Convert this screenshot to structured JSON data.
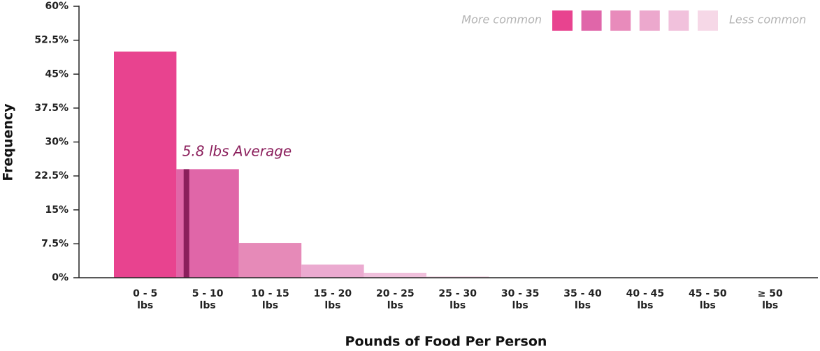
{
  "chart_data": {
    "type": "bar",
    "x_label": "Pounds of Food Per Person",
    "y_label": "Frequency",
    "categories": [
      "0 - 5 lbs",
      "5 - 10 lbs",
      "10 - 15 lbs",
      "15 - 20 lbs",
      "20 - 25 lbs",
      "25 - 30 lbs",
      "30 - 35 lbs",
      "35 - 40 lbs",
      "40 - 45 lbs",
      "45 - 50 lbs",
      "≥ 50 lbs"
    ],
    "values": [
      50,
      24,
      7.7,
      2.9,
      1.1,
      0.3,
      0,
      0,
      0,
      0,
      0
    ],
    "colors": [
      "#e8438f",
      "#e066a8",
      "#e68ab8",
      "#ebaad0",
      "#f0c0dc",
      "#f6d8e7",
      "#f6d8e7",
      "#f6d8e7",
      "#f6d8e7",
      "#f6d8e7",
      "#f6d8e7"
    ],
    "xlim": [
      0,
      55
    ],
    "ylim": [
      0,
      60
    ],
    "yticks": [
      {
        "value": 0,
        "label": "0%"
      },
      {
        "value": 7.5,
        "label": "7.5%"
      },
      {
        "value": 15,
        "label": "15%"
      },
      {
        "value": 22.5,
        "label": "22.5%"
      },
      {
        "value": 30,
        "label": "30%"
      },
      {
        "value": 37.5,
        "label": "37.5%"
      },
      {
        "value": 45,
        "label": "45%"
      },
      {
        "value": 52.5,
        "label": "52.5%"
      },
      {
        "value": 60,
        "label": "60%"
      }
    ],
    "average": {
      "value": 5.8,
      "label": "5.8 lbs Average",
      "color": "#8b1f5c"
    },
    "legend": {
      "left_label": "More common",
      "right_label": "Less common",
      "colors": [
        "#e8438f",
        "#e066a9",
        "#e88bbb",
        "#eca8cd",
        "#f1c1dc",
        "#f6d8e7"
      ]
    }
  }
}
